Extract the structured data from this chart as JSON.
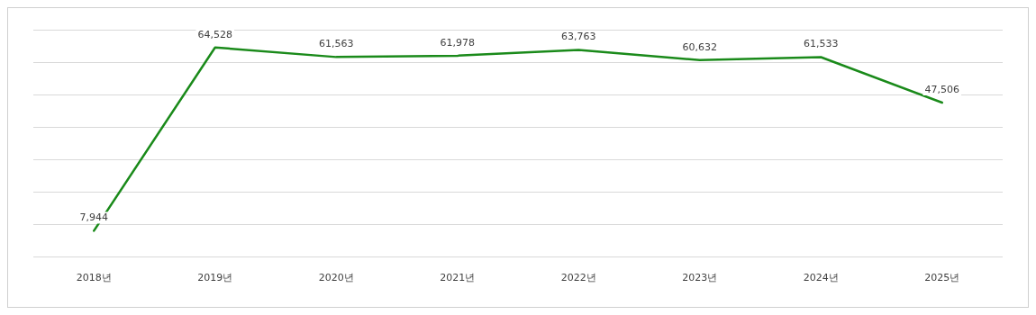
{
  "chart_data": {
    "type": "line",
    "categories": [
      "2018년",
      "2019년",
      "2020년",
      "2021년",
      "2022년",
      "2023년",
      "2024년",
      "2025년"
    ],
    "series": [
      {
        "color": "#1a8a1a",
        "values": [
          7944,
          64528,
          61563,
          61978,
          63763,
          60632,
          61533,
          47506
        ],
        "value_labels": [
          "7,944",
          "64,528",
          "61,563",
          "61,978",
          "63,763",
          "60,632",
          "61,533",
          "47,506"
        ]
      }
    ],
    "tick_labels": "x",
    "grid": "y",
    "marker": "none",
    "line_style": "solid"
  }
}
